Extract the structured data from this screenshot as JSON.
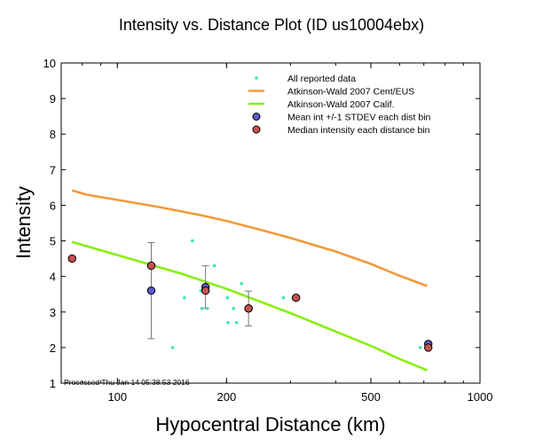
{
  "chart_data": {
    "type": "scatter",
    "title": "Intensity vs. Distance Plot (ID us10004ebx)",
    "xlabel": "Hypocentral Distance (km)",
    "ylabel": "Intensity",
    "xscale": "log",
    "xlim": [
      70,
      1000
    ],
    "ylim": [
      1,
      10
    ],
    "x_tick_labels": [
      {
        "value": 100,
        "label": "100"
      },
      {
        "value": 200,
        "label": "200"
      },
      {
        "value": 500,
        "label": "500"
      },
      {
        "value": 1000,
        "label": "1000"
      }
    ],
    "y_ticks": [
      1,
      2,
      3,
      4,
      5,
      6,
      7,
      8,
      9,
      10
    ],
    "legend_position": "top-right",
    "footer": "Processed Thu Jan 14 05:38:53 2016",
    "colors": {
      "reported": "#3de8a8",
      "cent_eus": "#f29a3a",
      "calif": "#88ee10",
      "mean": "#5a5ac8",
      "median": "#c8524e",
      "errorbar": "#777777"
    },
    "series": [
      {
        "name": "All reported data",
        "kind": "points",
        "points": [
          [
            124,
            4.3
          ],
          [
            142,
            2.0
          ],
          [
            153,
            3.4
          ],
          [
            161,
            5.0
          ],
          [
            170,
            3.6
          ],
          [
            175,
            3.7
          ],
          [
            177,
            3.1
          ],
          [
            171,
            3.1
          ],
          [
            185,
            4.3
          ],
          [
            201,
            3.4
          ],
          [
            202,
            2.7
          ],
          [
            209,
            3.1
          ],
          [
            213,
            2.7
          ],
          [
            220,
            3.8
          ],
          [
            227,
            3.1
          ],
          [
            287,
            3.4
          ],
          [
            305,
            3.4
          ],
          [
            684,
            2.0
          ],
          [
            712,
            2.1
          ],
          [
            722,
            2.0
          ]
        ]
      },
      {
        "name": "Atkinson-Wald 2007 Cent/EUS",
        "kind": "line",
        "points": [
          [
            75,
            6.42
          ],
          [
            82,
            6.3
          ],
          [
            100,
            6.15
          ],
          [
            130,
            5.95
          ],
          [
            170,
            5.72
          ],
          [
            200,
            5.56
          ],
          [
            250,
            5.3
          ],
          [
            300,
            5.08
          ],
          [
            400,
            4.7
          ],
          [
            500,
            4.35
          ],
          [
            600,
            4.02
          ],
          [
            715,
            3.73
          ]
        ]
      },
      {
        "name": "Atkinson-Wald 2007 Calif.",
        "kind": "line",
        "points": [
          [
            75,
            4.97
          ],
          [
            100,
            4.6
          ],
          [
            150,
            4.08
          ],
          [
            200,
            3.65
          ],
          [
            300,
            2.97
          ],
          [
            400,
            2.45
          ],
          [
            500,
            2.05
          ],
          [
            600,
            1.68
          ],
          [
            715,
            1.36
          ]
        ]
      },
      {
        "name": "Mean int +/-1 STDEV each dist bin",
        "kind": "mean",
        "points": [
          [
            124,
            3.6,
            1.35
          ],
          [
            175,
            3.7,
            0.6
          ],
          [
            230,
            3.1,
            0.49
          ],
          [
            720,
            2.1,
            0.05
          ]
        ]
      },
      {
        "name": "Median intensity each distance bin",
        "kind": "median",
        "points": [
          [
            75,
            4.5
          ],
          [
            124,
            4.3
          ],
          [
            175,
            3.6
          ],
          [
            230,
            3.1
          ],
          [
            311,
            3.4
          ],
          [
            720,
            2.0
          ]
        ]
      }
    ]
  }
}
